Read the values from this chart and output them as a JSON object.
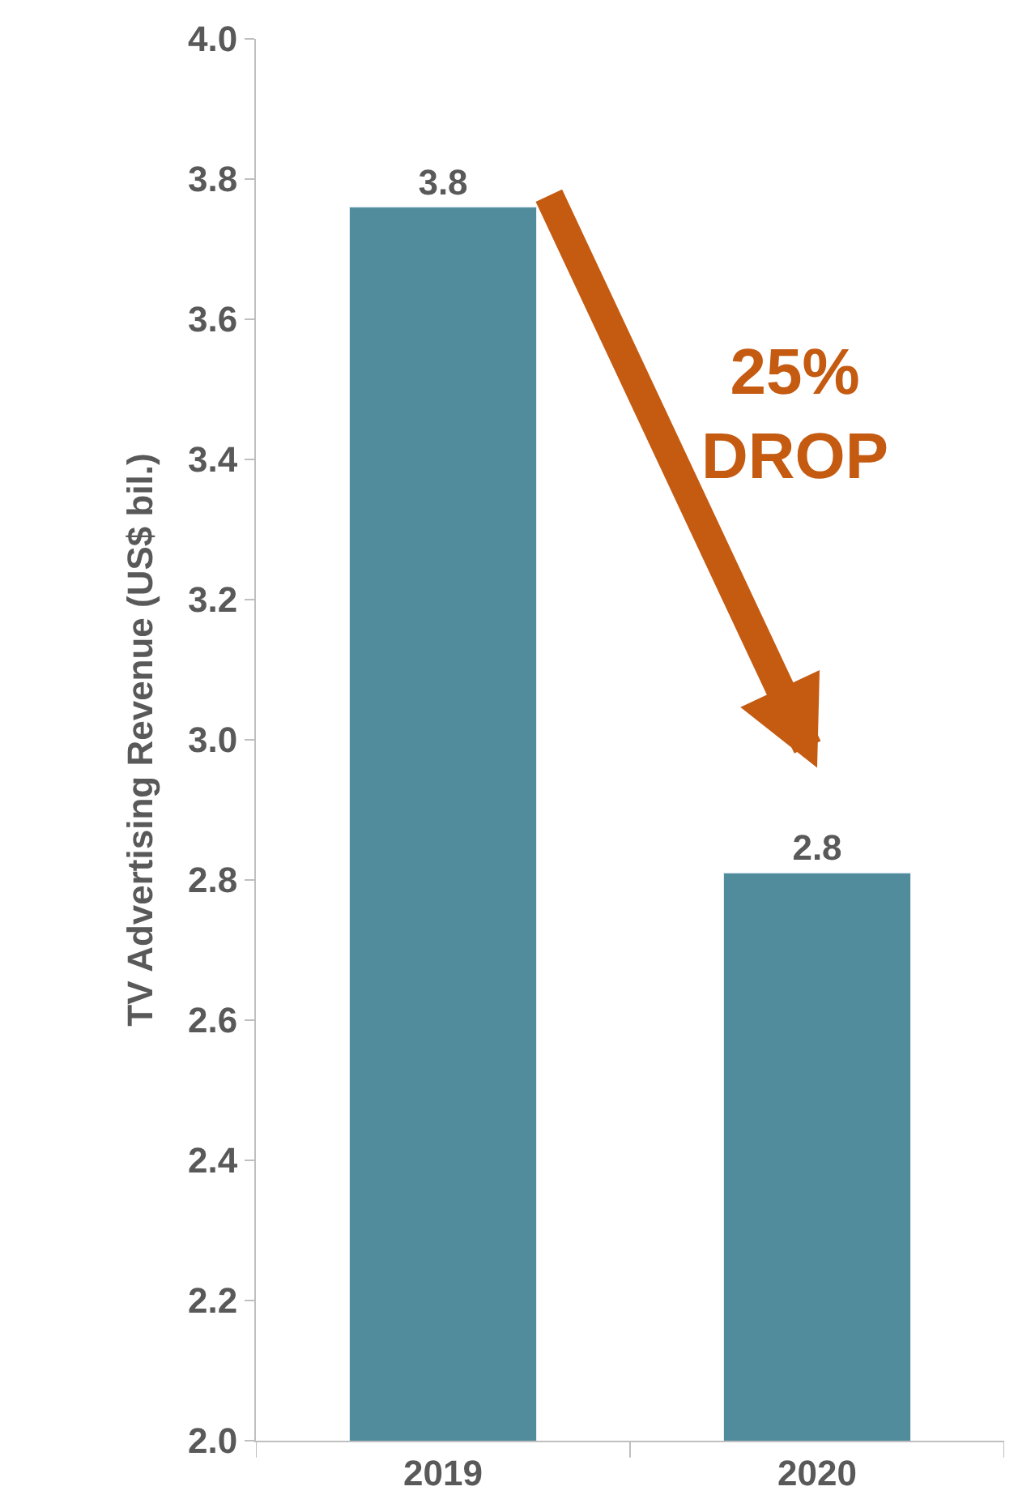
{
  "chart_data": {
    "type": "bar",
    "ylabel": "TV Advertising Revenue (US$ bil.)",
    "categories": [
      "2019",
      "2020"
    ],
    "values": [
      3.76,
      2.81
    ],
    "value_labels": [
      "3.8",
      "2.8"
    ],
    "color": "#518c9d",
    "ylim": [
      2.0,
      4.0
    ],
    "yticks": [
      {
        "value": 2.0,
        "label": "2.0"
      },
      {
        "value": 2.2,
        "label": "2.2"
      },
      {
        "value": 2.4,
        "label": "2.4"
      },
      {
        "value": 2.6,
        "label": "2.6"
      },
      {
        "value": 2.8,
        "label": "2.8"
      },
      {
        "value": 3.0,
        "label": "3.0"
      },
      {
        "value": 3.2,
        "label": "3.2"
      },
      {
        "value": 3.4,
        "label": "3.4"
      },
      {
        "value": 3.6,
        "label": "3.6"
      },
      {
        "value": 3.8,
        "label": "3.8"
      },
      {
        "value": 4.0,
        "label": "4.0"
      }
    ],
    "annotations": [
      "25%\nDROP"
    ],
    "legend": false
  }
}
